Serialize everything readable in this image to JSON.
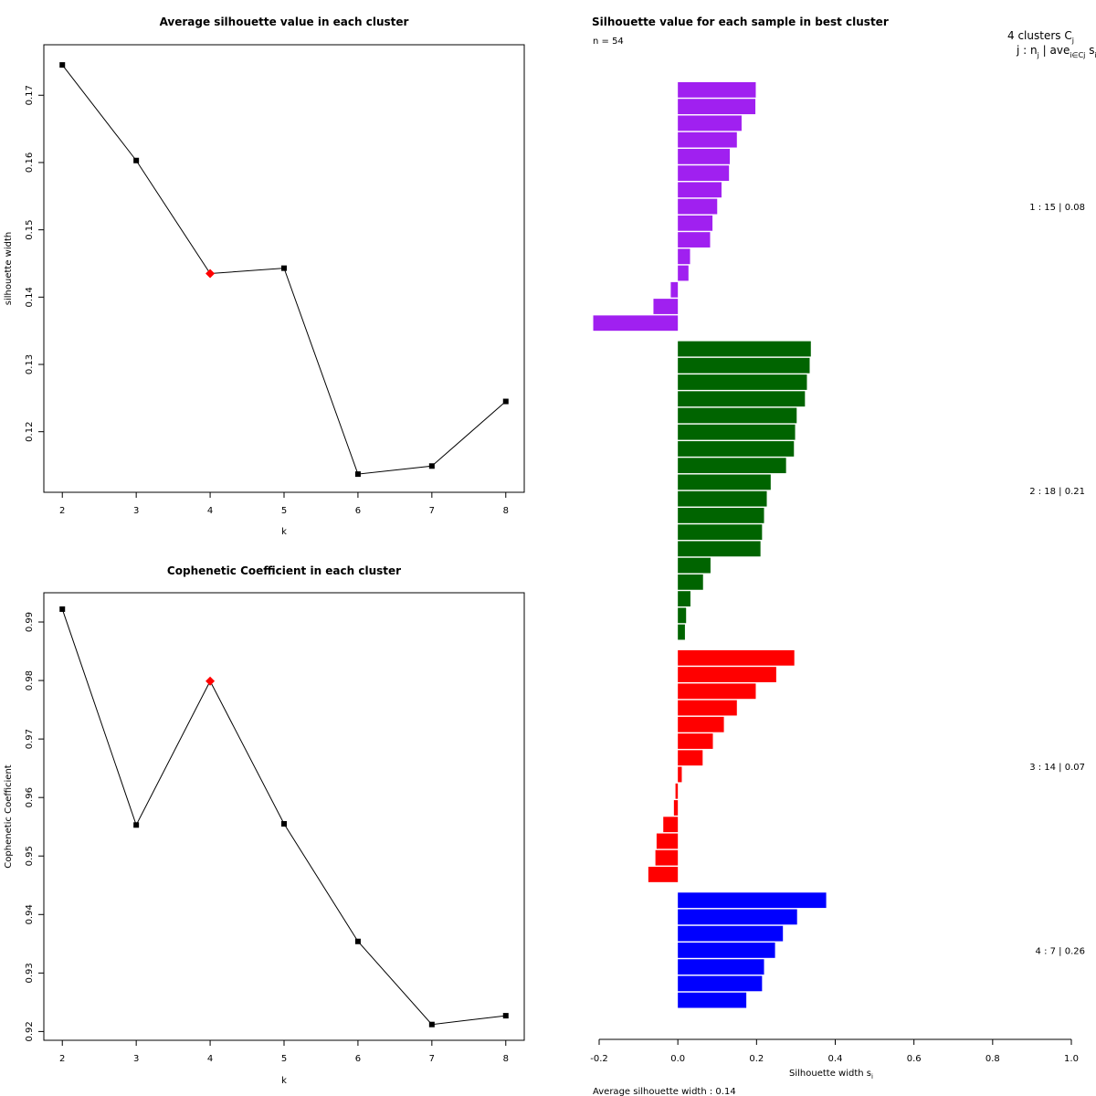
{
  "chart_data": [
    {
      "id": "avg_silhouette",
      "type": "line",
      "title": "Average silhouette value in each cluster",
      "xlabel": "k",
      "ylabel": "silhouette width",
      "x": [
        2,
        3,
        4,
        5,
        6,
        7,
        8
      ],
      "y": [
        0.1745,
        0.1603,
        0.1435,
        0.1443,
        0.1137,
        0.1149,
        0.1245
      ],
      "highlight_k": 4,
      "highlight_color": "#ff0000",
      "xlim": [
        1.75,
        8.25
      ],
      "ylim": [
        0.111,
        0.1775
      ],
      "xticks": [
        "2",
        "3",
        "4",
        "5",
        "6",
        "7",
        "8"
      ],
      "yticks": [
        "0.12",
        "0.13",
        "0.14",
        "0.15",
        "0.16",
        "0.17"
      ],
      "ytick_values": [
        0.12,
        0.13,
        0.14,
        0.15,
        0.16,
        0.17
      ]
    },
    {
      "id": "cophenetic",
      "type": "line",
      "title": "Cophenetic Coefficient in each cluster",
      "xlabel": "k",
      "ylabel": "Cophenetic Coefficient",
      "x": [
        2,
        3,
        4,
        5,
        6,
        7,
        8
      ],
      "y": [
        0.9922,
        0.9553,
        0.9799,
        0.9555,
        0.9354,
        0.9212,
        0.9227
      ],
      "highlight_k": 4,
      "highlight_color": "#ff0000",
      "xlim": [
        1.75,
        8.25
      ],
      "ylim": [
        0.9185,
        0.995
      ],
      "xticks": [
        "2",
        "3",
        "4",
        "5",
        "6",
        "7",
        "8"
      ],
      "yticks": [
        "0.92",
        "0.93",
        "0.94",
        "0.95",
        "0.96",
        "0.97",
        "0.98",
        "0.99"
      ],
      "ytick_values": [
        0.92,
        0.93,
        0.94,
        0.95,
        0.96,
        0.97,
        0.98,
        0.99
      ]
    },
    {
      "id": "silhouette_bars",
      "type": "bar",
      "orientation": "horizontal",
      "title": "Silhouette value for each sample in best cluster",
      "n_label": "n = 54",
      "header_line1": "4  clusters  C",
      "header_sub1": "j",
      "header_line2": "j :  n",
      "header_sub2": "j",
      "header_line2b": " | ave",
      "header_sub3": "i∈Cj",
      "header_line2c": "  s",
      "header_sub4": "i",
      "xlabel": "Silhouette width s",
      "xlabel_sub": "i",
      "footer": "Average silhouette width :  0.14",
      "xlim": [
        -0.2,
        1.0
      ],
      "xticks": [
        "-0.2",
        "0.0",
        "0.2",
        "0.4",
        "0.6",
        "0.8",
        "1.0"
      ],
      "xtick_values": [
        -0.2,
        0.0,
        0.2,
        0.4,
        0.6,
        0.8,
        1.0
      ],
      "clusters": [
        {
          "label": "1 :   15  |  0.08",
          "color": "#a020f0",
          "values": [
            0.198,
            0.197,
            0.162,
            0.15,
            0.132,
            0.13,
            0.111,
            0.1,
            0.088,
            0.082,
            0.031,
            0.027,
            -0.018,
            -0.062,
            -0.215
          ]
        },
        {
          "label": "2 :   18  |  0.21",
          "color": "#006400",
          "values": [
            0.338,
            0.335,
            0.328,
            0.323,
            0.302,
            0.298,
            0.295,
            0.275,
            0.236,
            0.226,
            0.219,
            0.214,
            0.21,
            0.083,
            0.064,
            0.032,
            0.021,
            0.018
          ]
        },
        {
          "label": "3 :   14  |  0.07",
          "color": "#ff0000",
          "values": [
            0.296,
            0.25,
            0.198,
            0.15,
            0.117,
            0.089,
            0.063,
            0.01,
            -0.006,
            -0.01,
            -0.037,
            -0.054,
            -0.057,
            -0.075
          ]
        },
        {
          "label": "4 :   7  |  0.26",
          "color": "#0000ff",
          "values": [
            0.377,
            0.303,
            0.267,
            0.247,
            0.219,
            0.214,
            0.174
          ]
        }
      ]
    }
  ]
}
